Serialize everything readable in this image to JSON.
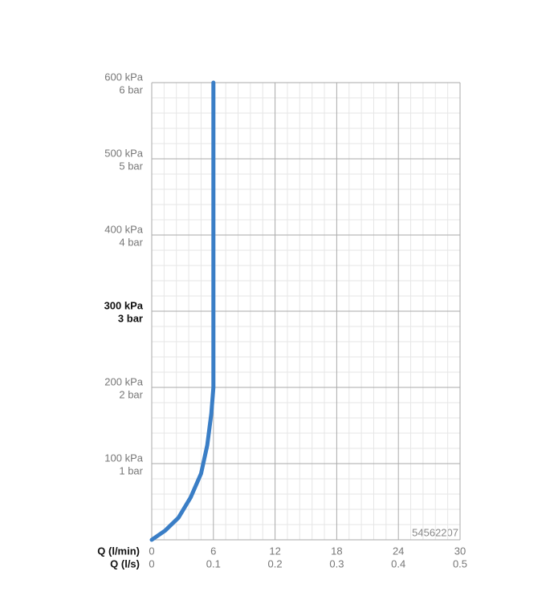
{
  "chart_data": {
    "type": "line",
    "xlabel": "Q (l/min)",
    "x2label": "Q (l/s)",
    "x": [
      0,
      1.3,
      2.6,
      3.8,
      4.8,
      5.4,
      5.8,
      6,
      6
    ],
    "series": [
      {
        "color": "#3a7ec6",
        "values": [
          0,
          12,
          29,
          56,
          87,
          124,
          166,
          200,
          600
        ]
      }
    ],
    "xlim": [
      0,
      30
    ],
    "xticks": [
      0,
      6,
      12,
      18,
      24,
      30
    ],
    "x2lim": [
      0,
      0.5
    ],
    "x2ticks": [
      0,
      0.1,
      0.2,
      0.3,
      0.4,
      0.5
    ],
    "ylim": [
      0,
      600
    ],
    "yticks": [
      {
        "value": 100,
        "label": "100 kPa"
      },
      {
        "value": 200,
        "label": "200 kPa"
      },
      {
        "value": 300,
        "label": "300 kPa",
        "bold": true
      },
      {
        "value": 400,
        "label": "400 kPa"
      },
      {
        "value": 500,
        "label": "500 kPa"
      },
      {
        "value": 600,
        "label": "600 kPa"
      }
    ],
    "y2ticks": [
      {
        "value": 100,
        "label": "1 bar"
      },
      {
        "value": 200,
        "label": "2 bar"
      },
      {
        "value": 300,
        "label": "3 bar",
        "bold": true
      },
      {
        "value": 400,
        "label": "4 bar"
      },
      {
        "value": 500,
        "label": "5 bar"
      },
      {
        "value": 600,
        "label": "6 bar"
      }
    ],
    "minor_divisions": 5,
    "grid": true,
    "watermark": "54562207"
  }
}
